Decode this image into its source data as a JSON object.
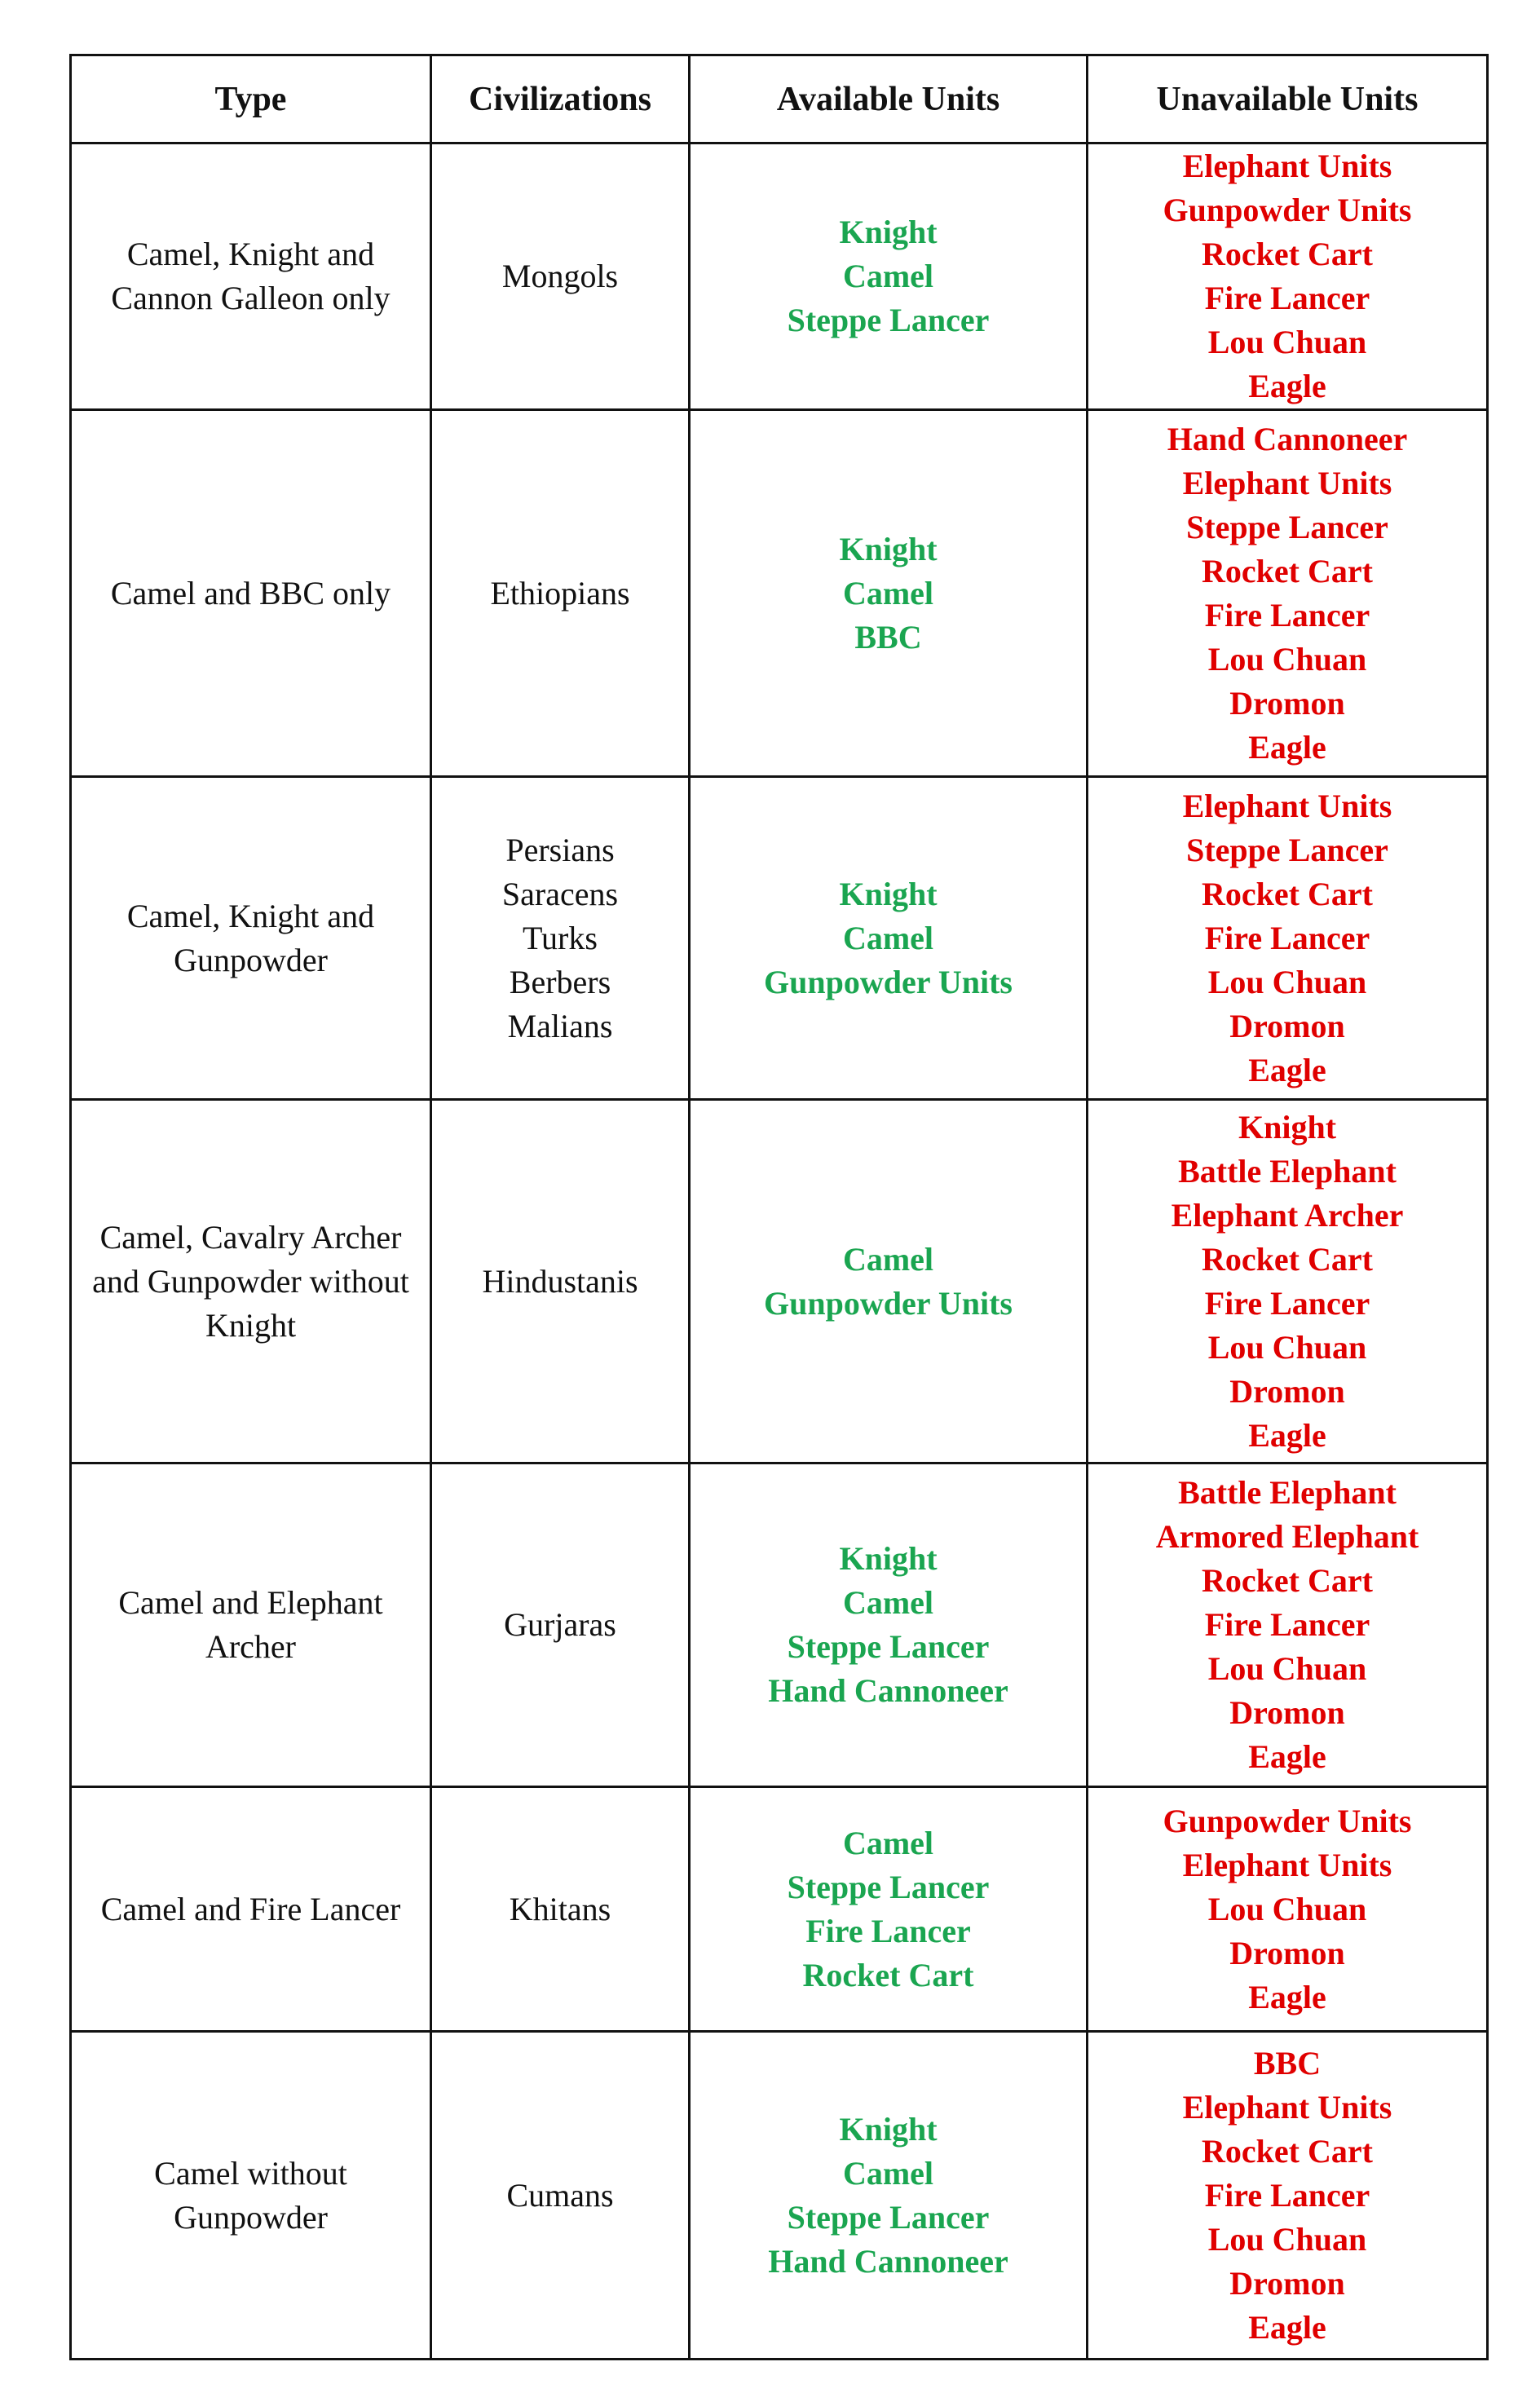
{
  "colors": {
    "available": "#1aa550",
    "unavailable": "#e00000"
  },
  "headers": [
    "Type",
    "Civilizations",
    "Available Units",
    "Unavailable Units"
  ],
  "rows": [
    {
      "type": "Camel, Knight and Cannon Galleon only",
      "civilizations": [
        "Mongols"
      ],
      "available": [
        "Knight",
        "Camel",
        "Steppe Lancer"
      ],
      "unavailable": [
        "Elephant Units",
        "Gunpowder Units",
        "Rocket Cart",
        "Fire Lancer",
        "Lou Chuan",
        "Eagle"
      ]
    },
    {
      "type": "Camel and BBC only",
      "civilizations": [
        "Ethiopians"
      ],
      "available": [
        "Knight",
        "Camel",
        "BBC"
      ],
      "unavailable": [
        "Hand Cannoneer",
        "Elephant Units",
        "Steppe Lancer",
        "Rocket Cart",
        "Fire Lancer",
        "Lou Chuan",
        "Dromon",
        "Eagle"
      ]
    },
    {
      "type": "Camel, Knight and Gunpowder",
      "civilizations": [
        "Persians",
        "Saracens",
        "Turks",
        "Berbers",
        "Malians"
      ],
      "available": [
        "Knight",
        "Camel",
        "Gunpowder Units"
      ],
      "unavailable": [
        "Elephant Units",
        "Steppe Lancer",
        "Rocket Cart",
        "Fire Lancer",
        "Lou Chuan",
        "Dromon",
        "Eagle"
      ]
    },
    {
      "type": "Camel, Cavalry Archer and Gunpowder without Knight",
      "civilizations": [
        "Hindustanis"
      ],
      "available": [
        "Camel",
        "Gunpowder Units"
      ],
      "unavailable": [
        "Knight",
        "Battle Elephant",
        "Elephant Archer",
        "Rocket Cart",
        "Fire Lancer",
        "Lou Chuan",
        "Dromon",
        "Eagle"
      ]
    },
    {
      "type": "Camel and Elephant Archer",
      "civilizations": [
        "Gurjaras"
      ],
      "available": [
        "Knight",
        "Camel",
        "Steppe Lancer",
        "Hand Cannoneer"
      ],
      "unavailable": [
        "Battle Elephant",
        "Armored Elephant",
        "Rocket Cart",
        "Fire Lancer",
        "Lou Chuan",
        "Dromon",
        "Eagle"
      ]
    },
    {
      "type": "Camel and Fire Lancer",
      "civilizations": [
        "Khitans"
      ],
      "available": [
        "Camel",
        "Steppe Lancer",
        "Fire Lancer",
        "Rocket Cart"
      ],
      "unavailable": [
        "Gunpowder Units",
        "Elephant Units",
        "Lou Chuan",
        "Dromon",
        "Eagle"
      ]
    },
    {
      "type": "Camel without Gunpowder",
      "civilizations": [
        "Cumans"
      ],
      "available": [
        "Knight",
        "Camel",
        "Steppe Lancer",
        "Hand Cannoneer"
      ],
      "unavailable": [
        "BBC",
        "Elephant Units",
        "Rocket Cart",
        "Fire Lancer",
        "Lou Chuan",
        "Dromon",
        "Eagle"
      ]
    }
  ]
}
